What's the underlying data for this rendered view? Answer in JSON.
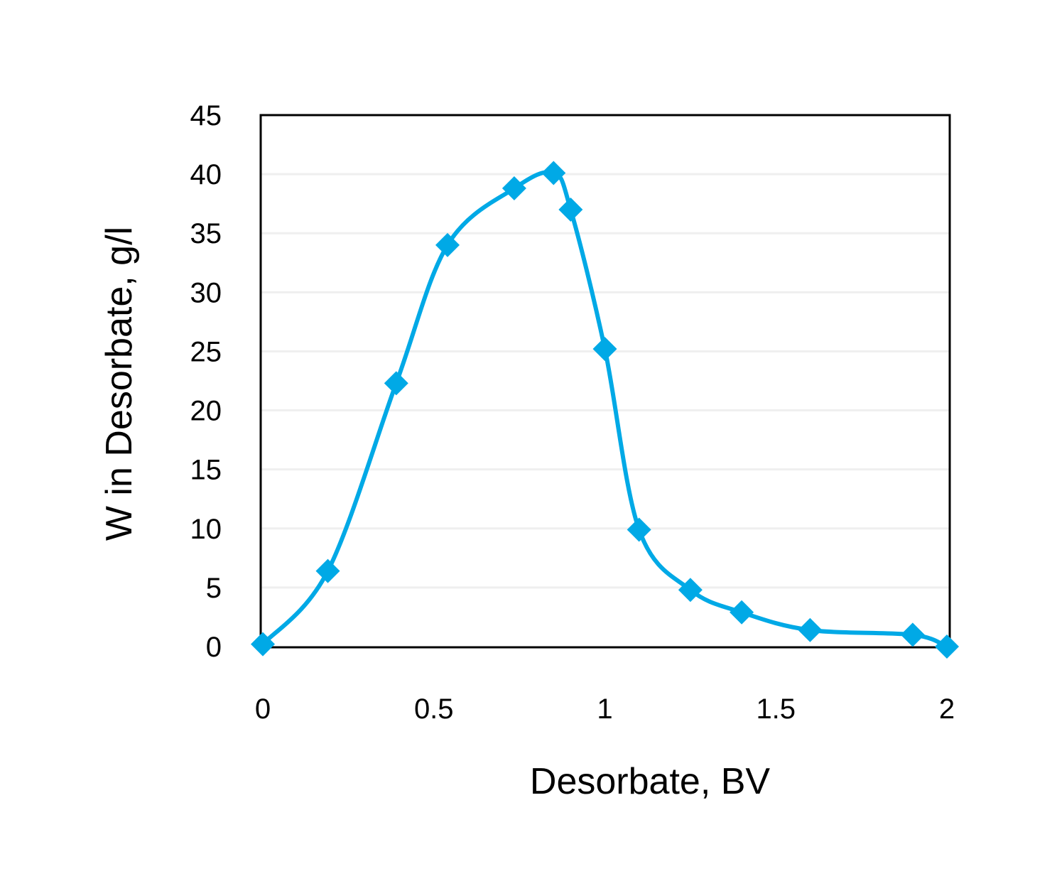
{
  "chart_data": {
    "type": "line",
    "title": "",
    "xlabel": "Desorbate, BV",
    "ylabel": "W in Desorbate, g/l",
    "xlim": [
      0,
      2
    ],
    "ylim": [
      0,
      45
    ],
    "xticks": [
      "0",
      "0.5",
      "1",
      "1.5",
      "2"
    ],
    "yticks": [
      "0",
      "5",
      "10",
      "15",
      "20",
      "25",
      "30",
      "35",
      "40",
      "45"
    ],
    "grid": "horizontal",
    "smooth": true,
    "marker": "diamond",
    "color": "#00A9E6",
    "series": [
      {
        "x": [
          0,
          0.19,
          0.39,
          0.54,
          0.735,
          0.85,
          0.9,
          1.0,
          1.1,
          1.25,
          1.4,
          1.6,
          1.9,
          2.0
        ],
        "y": [
          0.2,
          6.4,
          22.3,
          34,
          38.8,
          40.1,
          37,
          25.2,
          9.9,
          4.8,
          2.9,
          1.4,
          1.0,
          0
        ]
      }
    ]
  }
}
